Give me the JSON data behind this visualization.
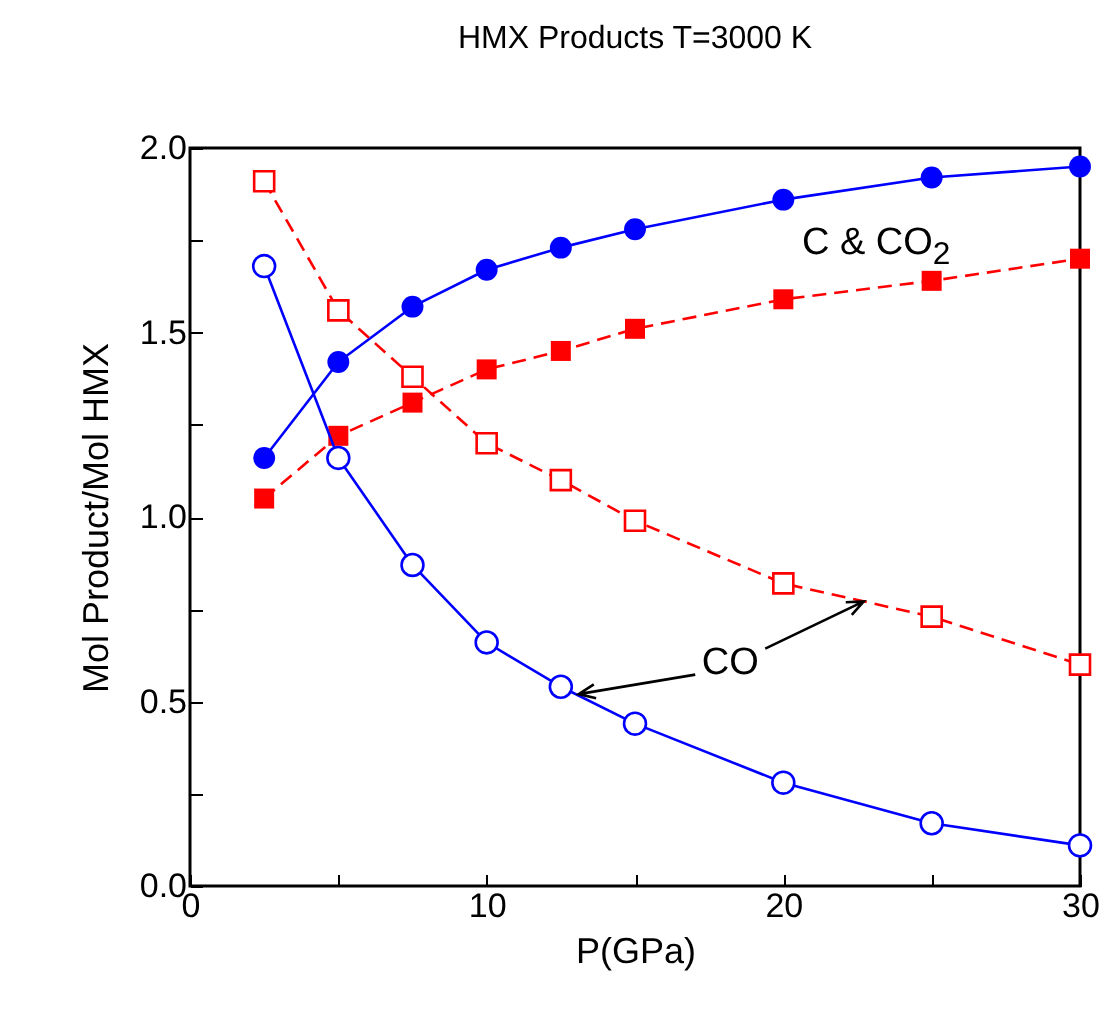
{
  "chart_data": {
    "type": "line",
    "title": "HMX Products T=3000 K",
    "xlabel": "P(GPa)",
    "ylabel": "Mol Product/Mol HMX",
    "x": [
      2.5,
      5,
      7.5,
      10,
      12.5,
      15,
      20,
      25,
      30
    ],
    "series": [
      {
        "color": "#0000ff",
        "marker": "circle",
        "line_style": "solid",
        "values": [
          1.16,
          1.42,
          1.57,
          1.67,
          1.73,
          1.78,
          1.86,
          1.92,
          1.95
        ]
      },
      {
        "color": "#ff0000",
        "marker": "square",
        "line_style": "dashed",
        "values": [
          1.05,
          1.22,
          1.31,
          1.4,
          1.45,
          1.51,
          1.59,
          1.64,
          1.7
        ]
      },
      {
        "color": "#ff0000",
        "marker": "square",
        "line_style": "dashed",
        "values": [
          1.91,
          1.56,
          1.38,
          1.2,
          1.1,
          0.99,
          0.82,
          0.73,
          0.6
        ]
      },
      {
        "color": "#0000ff",
        "marker": "circle",
        "line_style": "solid",
        "values": [
          1.68,
          1.16,
          0.87,
          0.66,
          0.54,
          0.44,
          0.28,
          0.17,
          0.11
        ]
      }
    ],
    "annotations": [
      "C & CO$_{2}$",
      {
        "text": "CO",
        "x": 13.1,
        "y": 0.52
      }
    ],
    "xlim": [
      0,
      30
    ],
    "ylim": [
      0,
      2
    ],
    "xticks": [
      0,
      {
        "value": 5,
        "label": null
      },
      10,
      {
        "value": 15,
        "label": null
      },
      20,
      {
        "value": 25,
        "label": null
      },
      30
    ],
    "yticks": [
      {
        "value": 0,
        "label": "0.0"
      },
      {
        "value": 0.25,
        "label": null
      },
      {
        "value": 0.5,
        "label": "0.5"
      },
      {
        "value": 0.75,
        "label": null
      },
      {
        "value": 1,
        "label": "1.0"
      },
      {
        "value": 1.25,
        "label": null
      },
      {
        "value": 1.5,
        "label": "1.5"
      },
      {
        "value": 1.75,
        "label": null
      },
      {
        "value": 2,
        "label": "2.0"
      }
    ],
    "grid": false
  }
}
